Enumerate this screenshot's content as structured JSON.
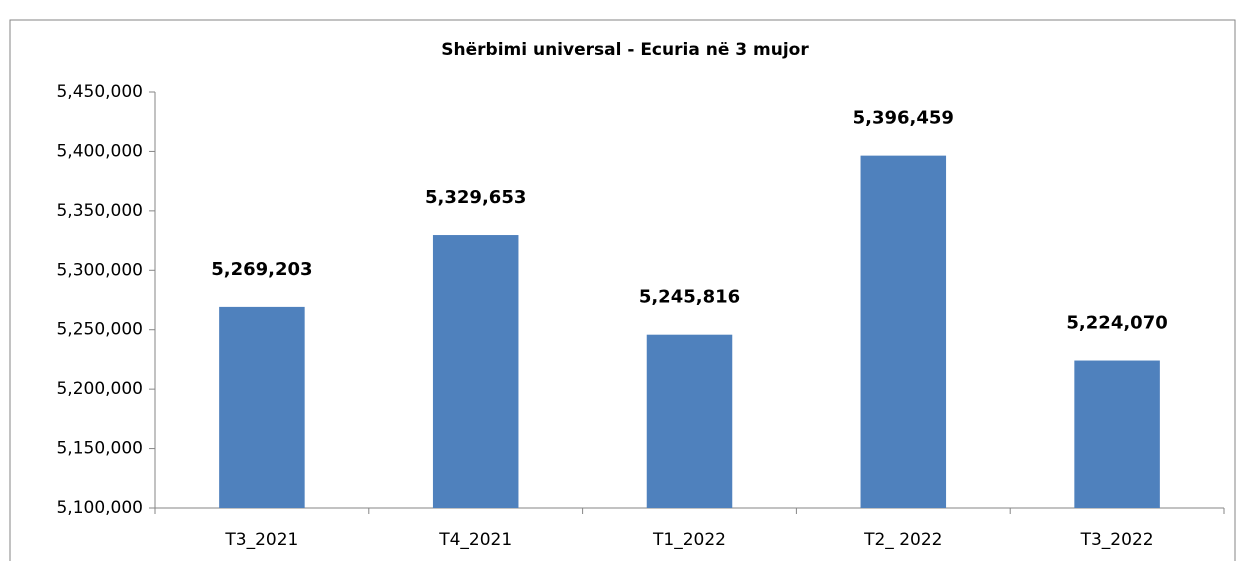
{
  "chart_data": {
    "type": "bar",
    "title": "Shërbimi universal - Ecuria në 3 mujor",
    "categories": [
      "T3_2021",
      "T4_2021",
      "T1_2022",
      "T2_ 2022",
      "T3_2022"
    ],
    "values": [
      5269203,
      5329653,
      5245816,
      5396459,
      5224070
    ],
    "value_labels": [
      "5,269,203",
      "5,329,653",
      "5,245,816",
      "5,396,459",
      "5,224,070"
    ],
    "color": "#4f81bd",
    "ylim": [
      5100000,
      5450000
    ],
    "yticks": [
      {
        "value": 5100000,
        "label": "5,100,000"
      },
      {
        "value": 5150000,
        "label": "5,150,000"
      },
      {
        "value": 5200000,
        "label": "5,200,000"
      },
      {
        "value": 5250000,
        "label": "5,250,000"
      },
      {
        "value": 5300000,
        "label": "5,300,000"
      },
      {
        "value": 5350000,
        "label": "5,350,000"
      },
      {
        "value": 5400000,
        "label": "5,400,000"
      },
      {
        "value": 5450000,
        "label": "5,450,000"
      }
    ],
    "grid": false
  }
}
